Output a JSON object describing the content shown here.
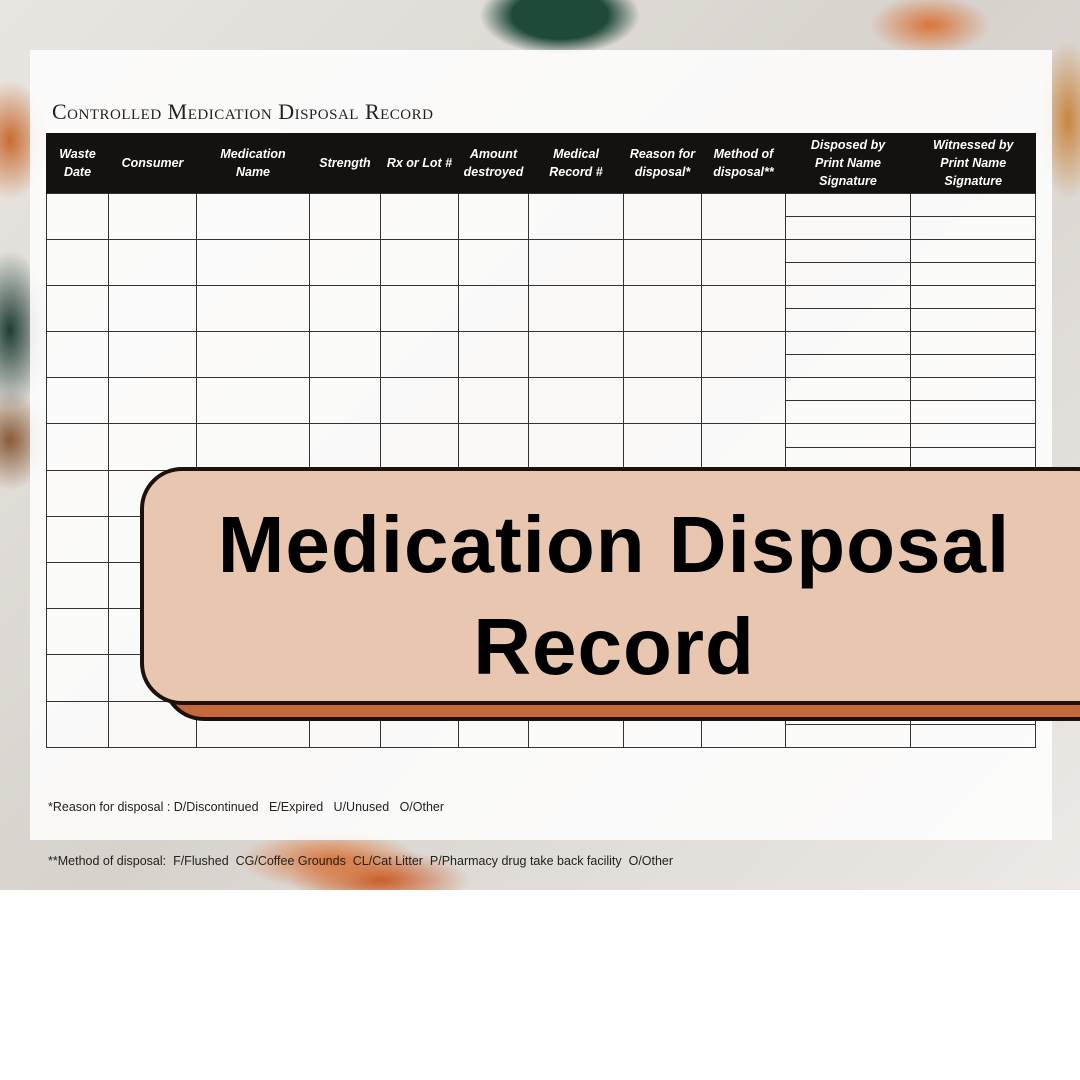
{
  "document": {
    "title": "Controlled Medication Disposal Record",
    "columns": [
      "Waste\nDate",
      "Consumer",
      "Medication\nName",
      "Strength",
      "Rx or Lot #",
      "Amount\ndestroyed",
      "Medical\nRecord #",
      "Reason for\ndisposal*",
      "Method of\ndisposal**",
      "Disposed by\nPrint Name\nSignature",
      "Witnessed by\nPrint Name\nSignature"
    ],
    "notes": [
      "*Reason for disposal : D/Discontinued   E/Expired   U/Unused   O/Other",
      "**Method of disposal:  F/Flushed  CG/Coffee Grounds  CL/Cat Litter  P/Pharmacy drug take back facility  O/Other"
    ]
  },
  "banner": {
    "line1": "Medication Disposal",
    "line2": "Record",
    "fill": "#e8c6b0",
    "shadow": "#c5693a"
  }
}
